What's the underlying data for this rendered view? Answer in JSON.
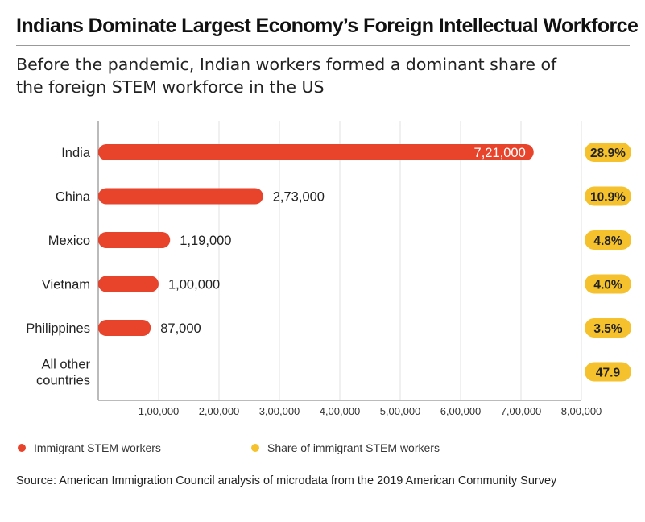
{
  "title": "Indians Dominate Largest Economy’s Foreign Intellectual Workforce",
  "subtitle": "Before the pandemic, Indian workers formed a dominant share of the foreign STEM workforce in the US",
  "colors": {
    "bar": "#e8432b",
    "share": "#f5c22d"
  },
  "chart_data": {
    "type": "bar",
    "orientation": "horizontal",
    "categories": [
      "India",
      "China",
      "Mexico",
      "Vietnam",
      "Philippines",
      "All other countries"
    ],
    "series": [
      {
        "name": "Immigrant STEM workers",
        "values": [
          721000,
          273000,
          119000,
          100000,
          87000,
          null
        ],
        "labels": [
          "7,21,000",
          "2,73,000",
          "1,19,000",
          "1,00,000",
          "87,000",
          ""
        ]
      },
      {
        "name": "Share of immigrant STEM workers",
        "values": [
          28.9,
          10.9,
          4.8,
          4.0,
          3.5,
          47.9
        ],
        "labels": [
          "28.9%",
          "10.9%",
          "4.8%",
          "4.0%",
          "3.5%",
          "47.9"
        ]
      }
    ],
    "xticks": [
      "1,00,000",
      "2,00,000",
      "3,00,000",
      "4,00,000",
      "5,00,000",
      "6,00,000",
      "7,00,000",
      "8,00,000"
    ],
    "xlim": [
      0,
      800000
    ],
    "legend_position": "bottom",
    "grid": true
  },
  "source": "Source: American Immigration Council analysis of microdata from the 2019 American Community Survey"
}
